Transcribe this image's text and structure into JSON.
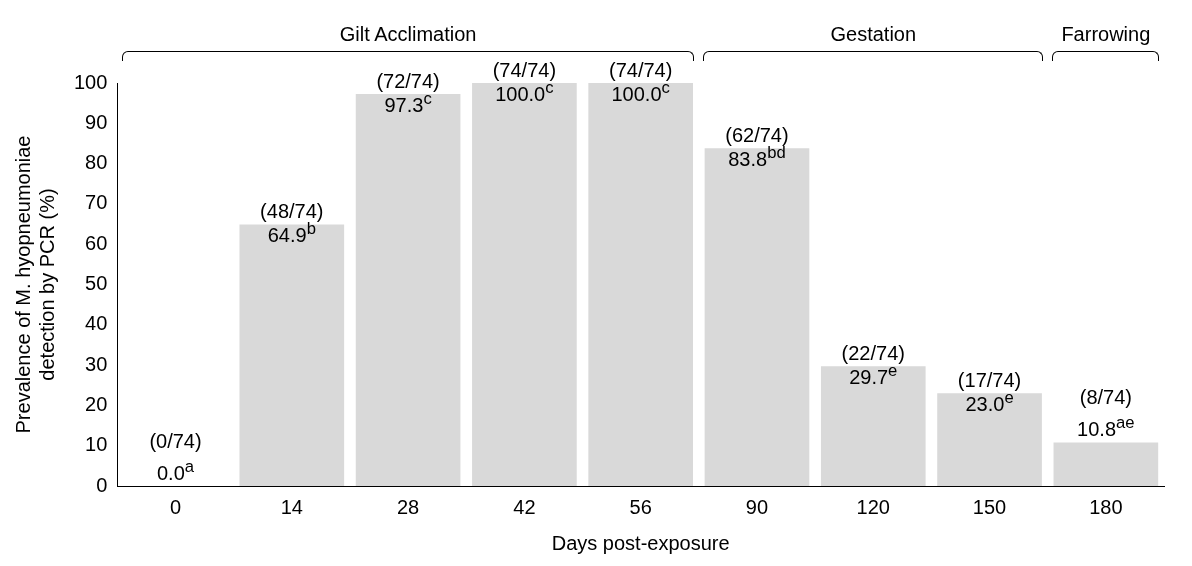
{
  "chart_data": {
    "type": "bar",
    "xlabel": "Days post-exposure",
    "ylabel": "Prevalence of M. hyopneumoniae detection by PCR (%)",
    "categories": [
      "0",
      "14",
      "28",
      "42",
      "56",
      "90",
      "120",
      "150",
      "180"
    ],
    "values": [
      0.0,
      64.9,
      97.3,
      100.0,
      100.0,
      83.8,
      29.7,
      23.0,
      10.8
    ],
    "value_labels": [
      "0.0$^{a}$",
      "64.9$^{b}$",
      "97.3$^{c}$",
      "100.0$^{c}$",
      "100.0$^{c}$",
      "83.8$^{bd}$",
      "29.7$^{e}$",
      "23.0$^{e}$",
      "10.8$^{ae}$"
    ],
    "color": "#d9d9d9",
    "ylim": [
      0,
      100
    ],
    "yticks": [
      0,
      10,
      20,
      30,
      40,
      50,
      60,
      70,
      80,
      90,
      100
    ],
    "grid": false,
    "legend": false,
    "annotations": [
      {
        "text": "(0/74)",
        "x": "0",
        "y": 0.0
      },
      {
        "text": "(48/74)",
        "x": "14",
        "y": 64.9
      },
      {
        "text": "(72/74)",
        "x": "28",
        "y": 97.3
      },
      {
        "text": "(74/74)",
        "x": "42",
        "y": 100.0
      },
      {
        "text": "(74/74)",
        "x": "56",
        "y": 100.0
      },
      {
        "text": "(62/74)",
        "x": "90",
        "y": 83.8
      },
      {
        "text": "(22/74)",
        "x": "120",
        "y": 29.7
      },
      {
        "text": "(17/74)",
        "x": "150",
        "y": 23.0
      },
      {
        "text": "(8/74)",
        "x": "180",
        "y": 10.8
      },
      "Gilt Acclimation",
      "Gestation",
      "Farrowing"
    ]
  }
}
